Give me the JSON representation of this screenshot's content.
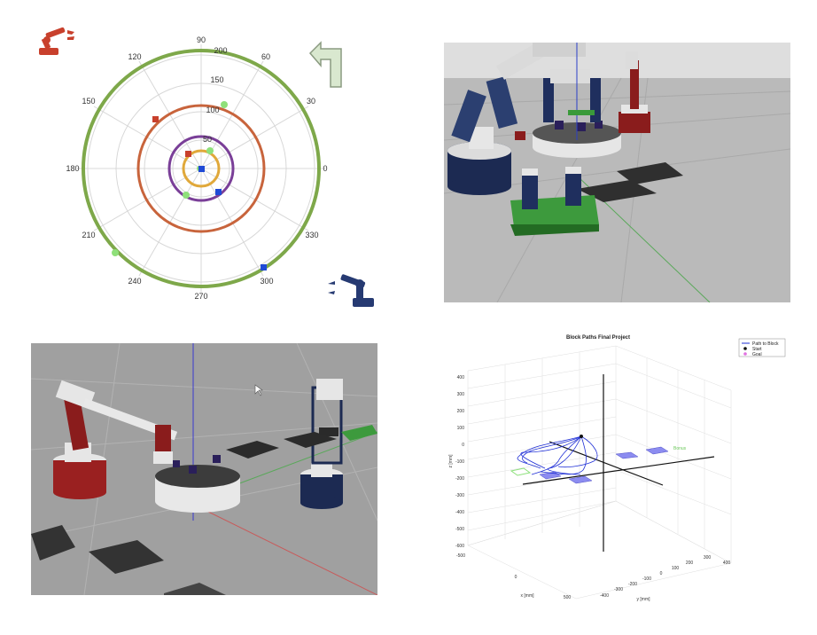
{
  "polar_plot": {
    "angle_labels": [
      "90",
      "60",
      "30",
      "0",
      "330",
      "300",
      "270",
      "240",
      "210",
      "180",
      "150",
      "120"
    ],
    "radial_labels": [
      "50",
      "100",
      "150",
      "200"
    ],
    "colors": {
      "outer": "#7ea84a",
      "middle": "#c8643c",
      "inner_purple": "#7a3f98",
      "inner_gold": "#e0a83a",
      "grid": "#d8d8d8"
    },
    "icons": {
      "top_left": "red-robot-arm-icon",
      "top_right": "undo-arrow-icon",
      "bottom_right": "blue-robot-arm-icon"
    }
  },
  "plot3d": {
    "title": "Block Paths Final Project",
    "legend": [
      "Path to Block",
      "Start",
      "Goal"
    ],
    "z_label": "z [mm]",
    "x_label": "x [mm]",
    "y_label": "y [mm]",
    "z_ticks": [
      "400",
      "300",
      "200",
      "100",
      "0",
      "-100",
      "-200",
      "-300",
      "-400",
      "-500",
      "-600"
    ],
    "x_ticks": [
      "-500",
      "0",
      "500"
    ],
    "y_ticks": [
      "-400",
      "-300",
      "-200",
      "-100",
      "0",
      "100",
      "200",
      "300",
      "400"
    ],
    "annotation": "Bonus",
    "colors": {
      "path": "#1f2fd6",
      "start": "#111111",
      "goal": "#e070e0",
      "block": "#8c8cf0",
      "bonus": "#8ce07a"
    }
  }
}
